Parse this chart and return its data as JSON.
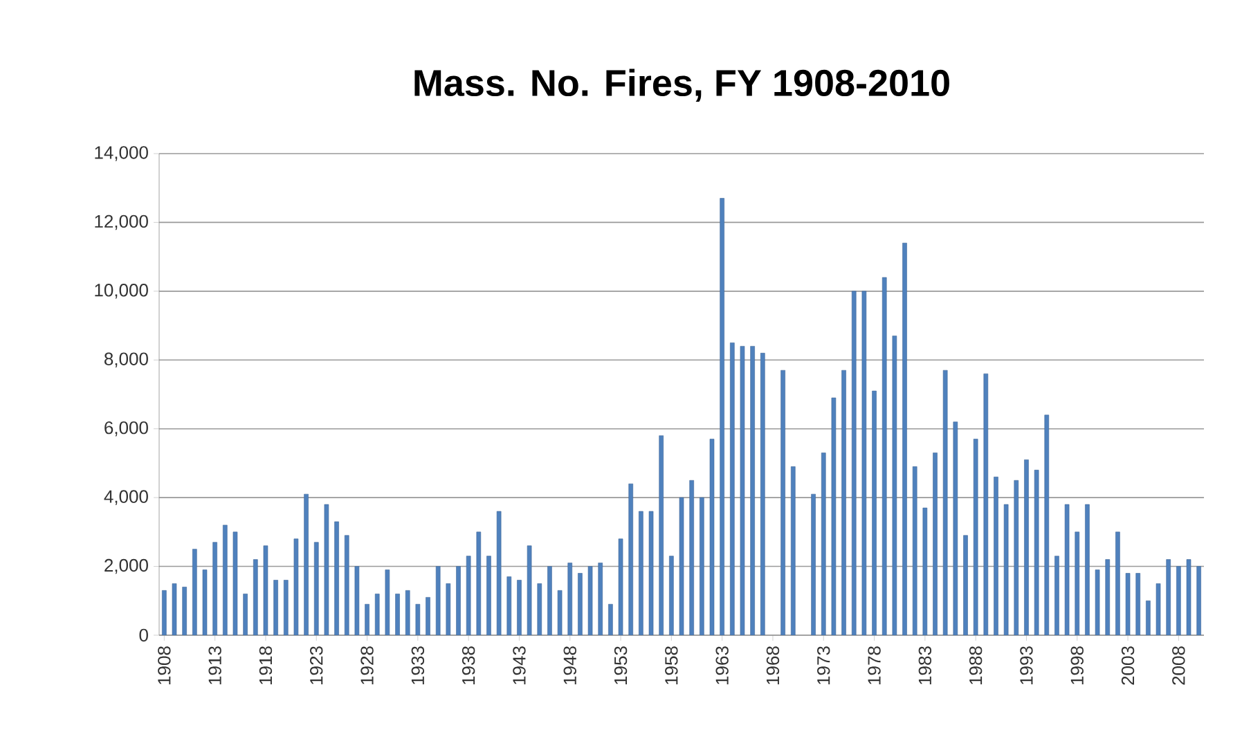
{
  "chart_data": {
    "type": "bar",
    "title": "Mass. No. Fires, FY 1908-2010",
    "categories": [
      "1908",
      null,
      null,
      null,
      null,
      "1913",
      null,
      null,
      null,
      null,
      "1918",
      null,
      null,
      null,
      null,
      "1923",
      null,
      null,
      null,
      null,
      "1928",
      null,
      null,
      null,
      null,
      "1933",
      null,
      null,
      null,
      null,
      "1938",
      null,
      null,
      null,
      null,
      "1943",
      null,
      null,
      null,
      null,
      "1948",
      null,
      null,
      null,
      null,
      "1953",
      null,
      null,
      null,
      null,
      "1958",
      null,
      null,
      null,
      null,
      "1963",
      null,
      null,
      null,
      null,
      "1968",
      null,
      null,
      null,
      null,
      "1973",
      null,
      null,
      null,
      null,
      "1978",
      null,
      null,
      null,
      null,
      "1983",
      null,
      null,
      null,
      null,
      "1988",
      null,
      null,
      null,
      null,
      "1993",
      null,
      null,
      null,
      null,
      "1998",
      null,
      null,
      null,
      null,
      "2003",
      null,
      null,
      null,
      null,
      "2008",
      null,
      null
    ],
    "values": [
      1300,
      1500,
      1400,
      2500,
      1900,
      2700,
      3200,
      3000,
      1200,
      2200,
      2600,
      1600,
      1600,
      2800,
      4100,
      2700,
      3800,
      3300,
      2900,
      2000,
      900,
      1200,
      1900,
      1200,
      1300,
      900,
      1100,
      2000,
      1500,
      2000,
      2300,
      3000,
      2300,
      3600,
      1700,
      1600,
      2600,
      1500,
      2000,
      1300,
      2100,
      1800,
      2000,
      2100,
      900,
      2800,
      4400,
      3600,
      3600,
      5800,
      2300,
      4000,
      4500,
      4000,
      5700,
      12700,
      8500,
      8400,
      8400,
      8200,
      null,
      7700,
      4900,
      null,
      4100,
      5300,
      6900,
      7700,
      10000,
      10000,
      7100,
      10400,
      8700,
      11400,
      4900,
      3700,
      5300,
      7700,
      6200,
      2900,
      5700,
      7600,
      4600,
      3800,
      4500,
      5100,
      4800,
      6400,
      2300,
      3800,
      3000,
      3800,
      1900,
      2200,
      3000,
      1800,
      1800,
      1000,
      1500,
      2200,
      2000,
      2200,
      2000
    ],
    "color": "#4f81bd",
    "ylim": [
      0,
      14000
    ],
    "yticks": [
      0,
      {
        "value": 2000,
        "label": "2,000"
      },
      {
        "value": 4000,
        "label": "4,000"
      },
      {
        "value": 6000,
        "label": "6,000"
      },
      {
        "value": 8000,
        "label": "8,000"
      },
      {
        "value": 10000,
        "label": "10,000"
      },
      {
        "value": 12000,
        "label": "12,000"
      },
      {
        "value": 14000,
        "label": "14,000"
      }
    ],
    "grid": "y"
  }
}
